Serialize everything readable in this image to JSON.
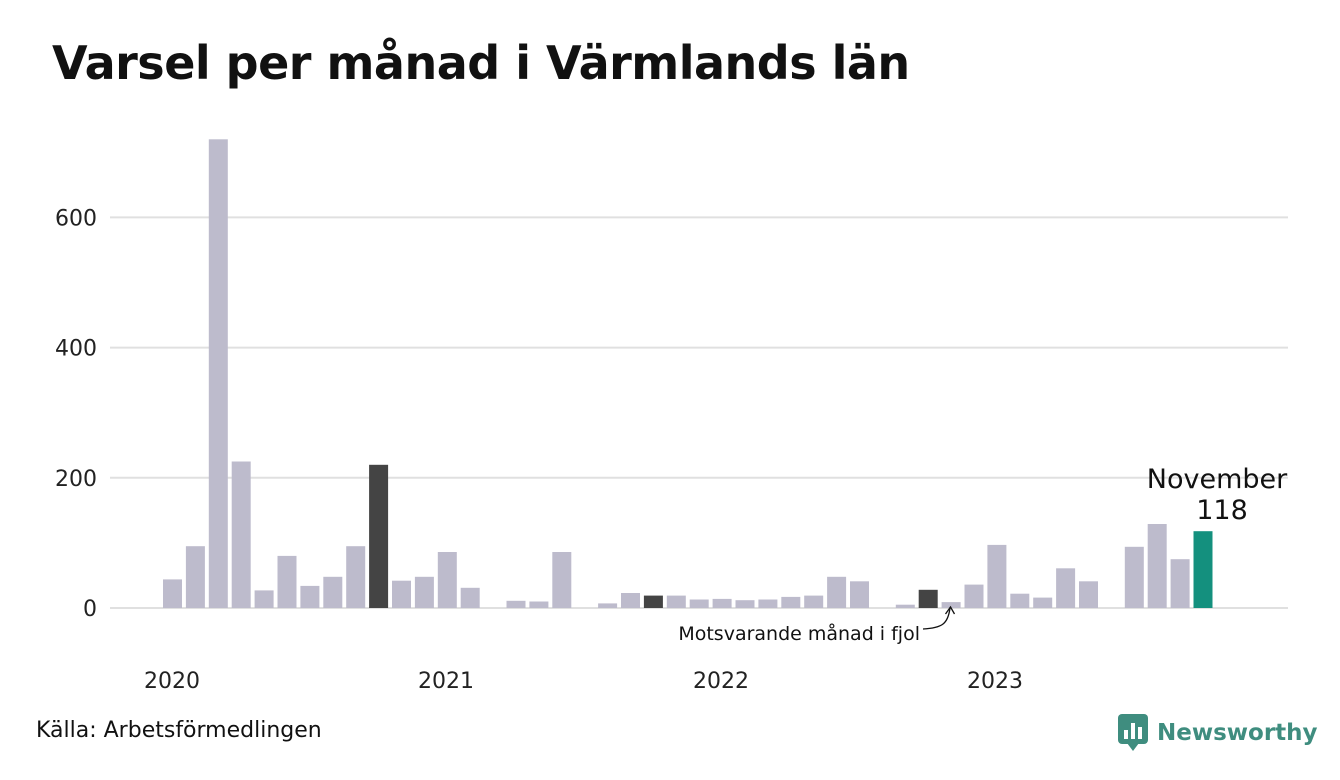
{
  "title": "Varsel per månad i Värmlands län",
  "source": "Källa: Arbetsförmedlingen",
  "brand": "Newsworthy",
  "annotation": "Motsvarande månad i fjol",
  "highlight": {
    "month": "November",
    "value_label": "118"
  },
  "colors": {
    "bar": "#bdbbcc",
    "previous_year": "#444444",
    "current": "#14907e",
    "grid": "#e0e0e0",
    "brand": "#3f8d7f"
  },
  "chart_data": {
    "type": "bar",
    "title": "Varsel per månad i Värmlands län",
    "xlabel": "",
    "ylabel": "",
    "ylim": [
      0,
      720
    ],
    "y_ticks": [
      "0",
      "200",
      "400",
      "600"
    ],
    "x_tick_labels": [
      "2020",
      "2021",
      "2022",
      "2023"
    ],
    "grid": true,
    "series": [
      {
        "values": [
          44,
          95,
          720,
          225,
          27,
          80,
          34,
          48,
          95,
          220,
          42,
          48,
          86,
          31,
          0,
          11,
          10,
          86,
          0,
          7,
          23,
          19,
          19,
          13,
          14,
          12,
          13,
          17,
          19,
          48,
          41,
          0,
          5,
          28,
          9,
          36,
          97,
          22,
          16,
          61,
          41,
          0,
          94,
          129,
          75,
          118
        ]
      }
    ],
    "highlight_previous_year_indices": [
      9,
      21,
      33
    ],
    "highlight_current_index": 45
  }
}
